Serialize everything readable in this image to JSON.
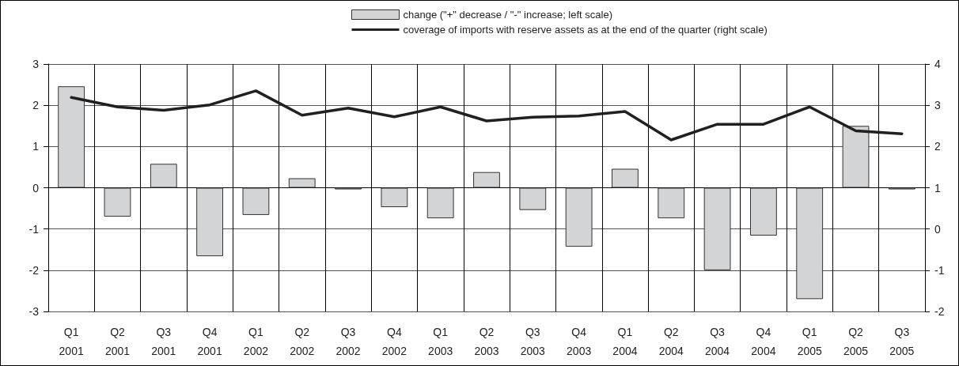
{
  "chart_data": {
    "type": "bar",
    "categories": [
      "Q1\n2001",
      "Q2\n2001",
      "Q3\n2001",
      "Q4\n2001",
      "Q1\n2002",
      "Q2\n2002",
      "Q3\n2002",
      "Q4\n2002",
      "Q1\n2003",
      "Q2\n2003",
      "Q3\n2003",
      "Q4\n2003",
      "Q1\n2004",
      "Q2\n2004",
      "Q3\n2004",
      "Q4\n2004",
      "Q1\n2005",
      "Q2\n2005",
      "Q3\n2005"
    ],
    "series": [
      {
        "name": "change (\"+\" decrease / \"-\" increase; left scale)",
        "color": "#d3d4d6",
        "values": [
          2.46,
          -0.7,
          0.58,
          -1.66,
          -0.66,
          0.23,
          -0.04,
          -0.47,
          -0.74,
          0.38,
          -0.54,
          -1.43,
          0.46,
          -0.74,
          -2.0,
          -1.16,
          -2.7,
          1.5,
          -0.04
        ]
      },
      {
        "name": "coverage of imports with reserve assets as at the end of the quarter (right scale)",
        "type": "line",
        "axis": "y2",
        "color": "#231f20",
        "values": [
          3.19,
          2.96,
          2.88,
          3.01,
          3.35,
          2.76,
          2.93,
          2.72,
          2.96,
          2.62,
          2.71,
          2.74,
          2.85,
          2.16,
          2.54,
          2.54,
          2.96,
          2.38,
          2.31
        ]
      }
    ],
    "ylim": [
      -3,
      3
    ],
    "yticks": [
      -3,
      -2,
      -1,
      0,
      1,
      2,
      3
    ],
    "y2lim": [
      -2,
      4
    ],
    "y2ticks": [
      -2,
      -1,
      0,
      1,
      2,
      3,
      4
    ],
    "grid": true,
    "legend": "top",
    "marker": "none",
    "line_style": "solid"
  }
}
